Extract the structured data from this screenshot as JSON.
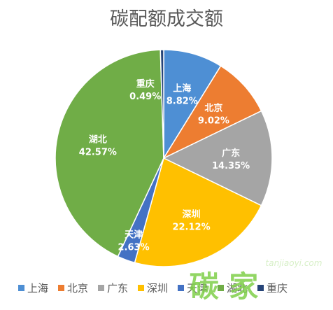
{
  "chart_data": {
    "type": "pie",
    "title": "碳配额成交额",
    "legend_position": "bottom",
    "slices": [
      {
        "name": "上海",
        "value": 8.82,
        "label": "8.82%",
        "color": "#4e8fd4"
      },
      {
        "name": "北京",
        "value": 9.02,
        "label": "9.02%",
        "color": "#ed7d31"
      },
      {
        "name": "广东",
        "value": 14.35,
        "label": "14.35%",
        "color": "#a5a5a5"
      },
      {
        "name": "深圳",
        "value": 22.12,
        "label": "22.12%",
        "color": "#ffc000"
      },
      {
        "name": "天津",
        "value": 2.63,
        "label": "2.63%",
        "color": "#4472c4"
      },
      {
        "name": "湖北",
        "value": 42.57,
        "label": "42.57%",
        "color": "#70ad47"
      },
      {
        "name": "重庆",
        "value": 0.49,
        "label": "0.49%",
        "color": "#264478"
      }
    ]
  },
  "watermark": {
    "text": "碳 家",
    "url": "tanjiaoyi.com"
  }
}
